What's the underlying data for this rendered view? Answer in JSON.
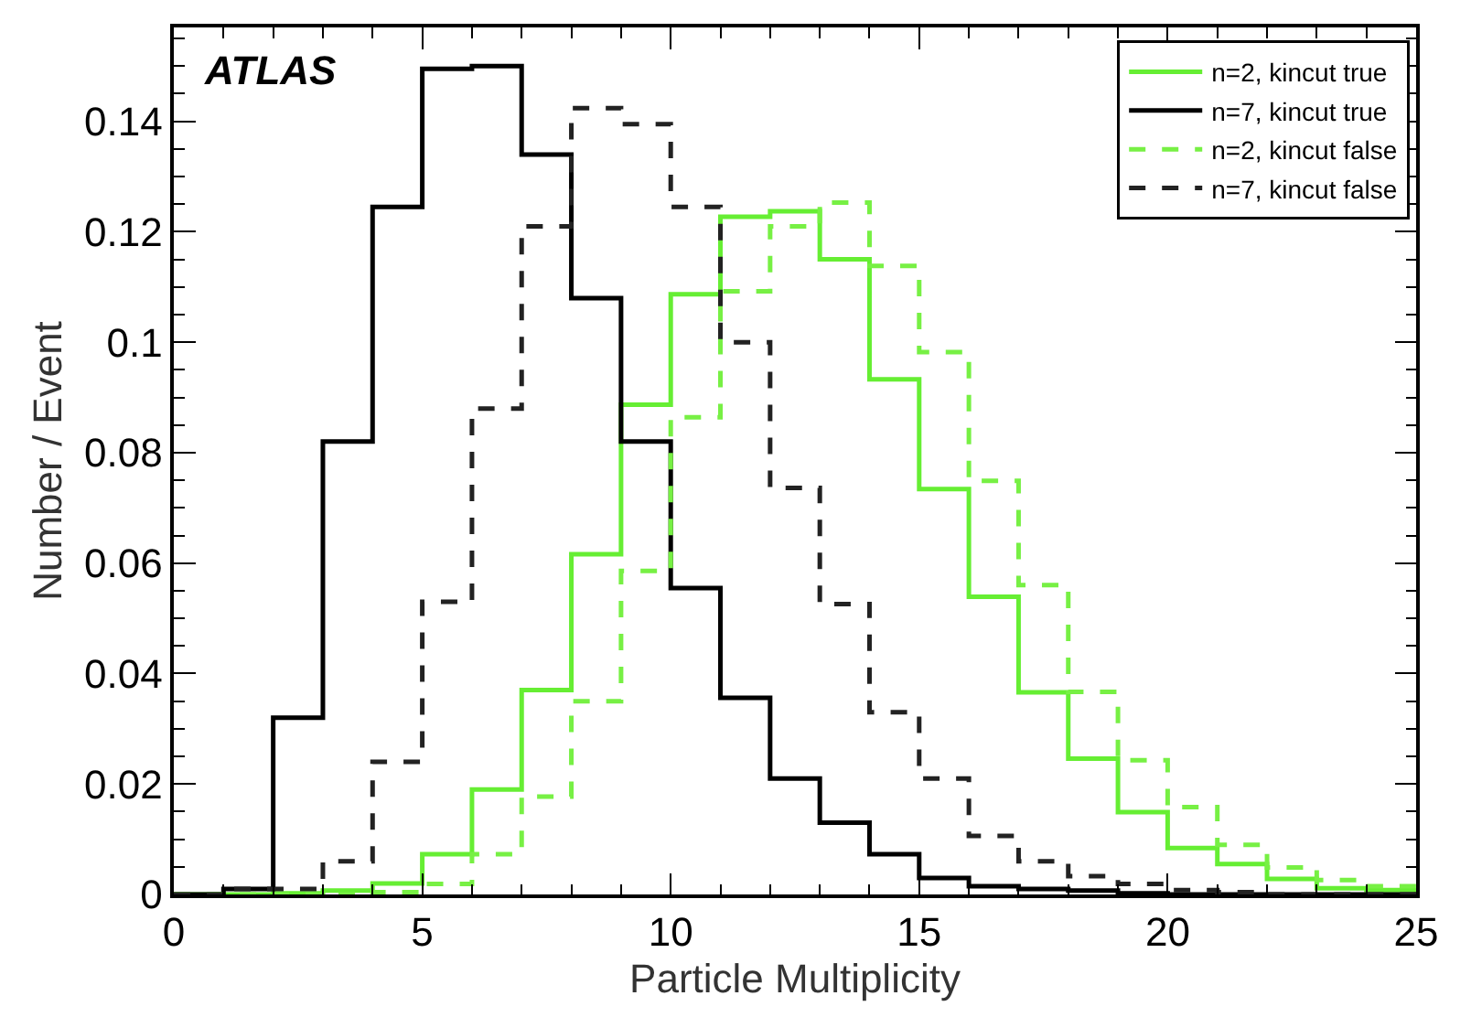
{
  "chart_data": {
    "type": "histogram",
    "xlabel": "Particle Multiplicity",
    "ylabel": "Number / Event",
    "annotations": [
      "ATLAS"
    ],
    "bins": [
      0,
      1,
      2,
      3,
      4,
      5,
      6,
      7,
      8,
      9,
      10,
      11,
      12,
      13,
      14,
      15,
      16,
      17,
      18,
      19,
      20,
      21,
      22,
      23,
      24,
      25
    ],
    "series": [
      {
        "name": "n=2, kincut true",
        "color": "#66ee33",
        "line_style": "solid",
        "values": [
          0,
          0,
          0.0002,
          0.0007,
          0.002,
          0.0073,
          0.019,
          0.037,
          0.0616,
          0.0887,
          0.1087,
          0.1227,
          0.1237,
          0.115,
          0.0933,
          0.0734,
          0.0539,
          0.0366,
          0.0246,
          0.0149,
          0.0084,
          0.0055,
          0.0028,
          0.0011,
          0.0008
        ]
      },
      {
        "name": "n=7, kincut true",
        "color": "#000000",
        "line_style": "solid",
        "values": [
          0,
          0.001,
          0.032,
          0.082,
          0.1245,
          0.1495,
          0.15,
          0.134,
          0.108,
          0.082,
          0.0555,
          0.0356,
          0.021,
          0.013,
          0.0073,
          0.003,
          0.0015,
          0.001,
          0.0007,
          0.0002,
          0,
          0,
          0,
          0,
          0
        ]
      },
      {
        "name": "n=2, kincut false",
        "color": "#77f044",
        "line_style": "dashed",
        "values": [
          0,
          0,
          0,
          0,
          0.0004,
          0.0019,
          0.0073,
          0.0177,
          0.035,
          0.0586,
          0.0864,
          0.1092,
          0.121,
          0.1253,
          0.1138,
          0.0982,
          0.0749,
          0.056,
          0.0367,
          0.0243,
          0.0158,
          0.009,
          0.0049,
          0.0026,
          0.0015
        ]
      },
      {
        "name": "n=7, kincut false",
        "color": "#222222",
        "line_style": "dashed",
        "values": [
          0,
          0.001,
          0.001,
          0.006,
          0.024,
          0.053,
          0.088,
          0.121,
          0.1424,
          0.1395,
          0.1245,
          0.1,
          0.0736,
          0.0526,
          0.033,
          0.021,
          0.0106,
          0.006,
          0.0033,
          0.0019,
          0.0008,
          0.0004,
          0,
          0,
          0
        ]
      }
    ],
    "xlim": [
      0,
      25
    ],
    "xticks": [
      0,
      5,
      10,
      15,
      20,
      25
    ],
    "ylim": [
      0,
      0.157
    ],
    "yticks": [
      0,
      0.02,
      0.04,
      0.06,
      0.08,
      0.1,
      0.12,
      0.14
    ],
    "legend": "top right"
  }
}
